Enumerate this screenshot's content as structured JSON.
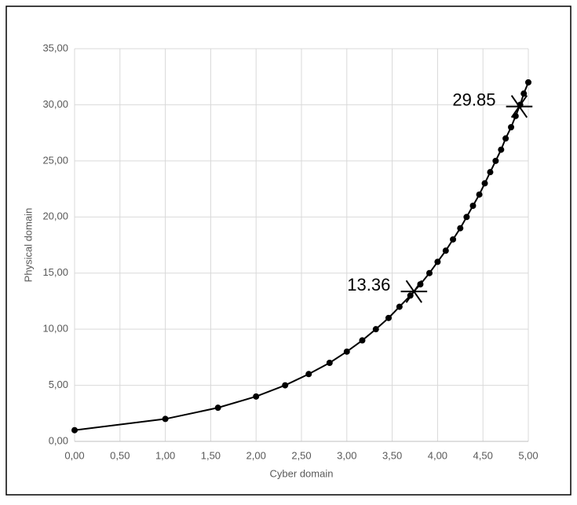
{
  "chart_data": {
    "type": "line",
    "x_label": "Cyber domain",
    "y_label": "Physical domain",
    "x": [
      0,
      1,
      1.58,
      2,
      2.32,
      2.58,
      2.81,
      3,
      3.17,
      3.32,
      3.46,
      3.58,
      3.7,
      3.81,
      3.91,
      4,
      4.09,
      4.17,
      4.25,
      4.32,
      4.39,
      4.46,
      4.52,
      4.58,
      4.64,
      4.7,
      4.75,
      4.81,
      4.86,
      4.91,
      4.95,
      5
    ],
    "values": [
      1,
      2,
      3,
      4,
      5,
      6,
      7,
      8,
      9,
      10,
      11,
      12,
      13,
      14,
      15,
      16,
      17,
      18,
      19,
      20,
      21,
      22,
      23,
      24,
      25,
      26,
      27,
      28,
      29,
      30,
      31,
      32
    ],
    "color": "#000000",
    "xlim": [
      0,
      5
    ],
    "xticks": [
      {
        "value": 0,
        "label": "0,00"
      },
      {
        "value": 0.5,
        "label": "0,50"
      },
      {
        "value": 1,
        "label": "1,00"
      },
      {
        "value": 1.5,
        "label": "1,50"
      },
      {
        "value": 2,
        "label": "2,00"
      },
      {
        "value": 2.5,
        "label": "2,50"
      },
      {
        "value": 3,
        "label": "3,00"
      },
      {
        "value": 3.5,
        "label": "3,50"
      },
      {
        "value": 4,
        "label": "4,00"
      },
      {
        "value": 4.5,
        "label": "4,50"
      },
      {
        "value": 5,
        "label": "5,00"
      }
    ],
    "ylim": [
      0,
      35
    ],
    "yticks": [
      {
        "value": 0,
        "label": "0,00"
      },
      {
        "value": 5,
        "label": "5,00"
      },
      {
        "value": 10,
        "label": "10,00"
      },
      {
        "value": 15,
        "label": "15,00"
      },
      {
        "value": 20,
        "label": "20,00"
      },
      {
        "value": 25,
        "label": "25,00"
      },
      {
        "value": 30,
        "label": "30,00"
      },
      {
        "value": 35,
        "label": "35,00"
      }
    ],
    "grid": true,
    "annotations": [
      {
        "text": "13.36",
        "x": 3.74,
        "y": 13.36
      },
      {
        "text": "29.85",
        "x": 4.9,
        "y": 29.85
      }
    ]
  }
}
